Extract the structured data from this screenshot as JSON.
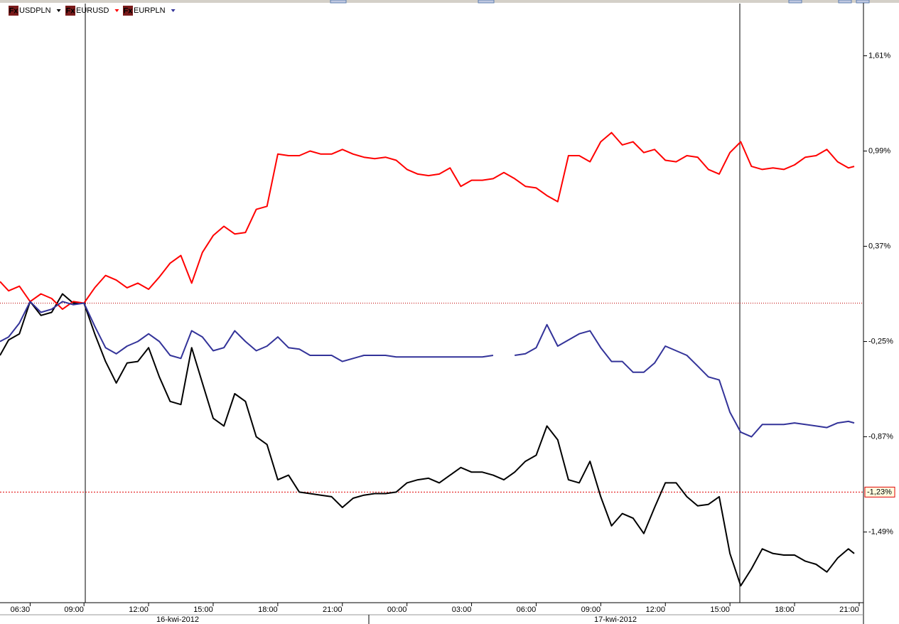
{
  "chart_data": {
    "type": "line",
    "icon_label": "Fx",
    "xlim": [
      5.1,
      45.2
    ],
    "ylim": [
      -1.95,
      1.95
    ],
    "x": [
      5.1,
      5.5,
      6,
      6.5,
      7,
      7.5,
      8,
      8.5,
      9,
      9.5,
      10,
      10.5,
      11,
      11.5,
      12,
      12.5,
      13,
      13.5,
      14,
      14.5,
      15,
      15.5,
      16,
      16.5,
      17,
      17.5,
      18,
      18.5,
      19,
      19.5,
      20,
      20.5,
      21,
      21.5,
      22,
      22.5,
      23,
      23.5,
      24,
      24.5,
      25,
      25.5,
      26,
      26.5,
      27,
      27.5,
      28,
      28.5,
      29,
      29.5,
      30,
      30.5,
      31,
      31.5,
      32,
      32.5,
      33,
      33.5,
      34,
      34.5,
      35,
      35.5,
      36,
      36.5,
      37,
      37.5,
      38,
      38.5,
      39,
      39.5,
      40,
      40.5,
      41,
      41.5,
      42,
      42.5,
      43,
      43.5,
      44,
      44.5,
      44.77
    ],
    "xticks": [
      {
        "value": 6.5,
        "label": "06:30"
      },
      {
        "value": 9,
        "label": "09:00"
      },
      {
        "value": 12,
        "label": "12:00"
      },
      {
        "value": 15,
        "label": "15:00"
      },
      {
        "value": 18,
        "label": "18:00"
      },
      {
        "value": 21,
        "label": "21:00"
      },
      {
        "value": 24,
        "label": "00:00"
      },
      {
        "value": 27,
        "label": "03:00"
      },
      {
        "value": 30,
        "label": "06:00"
      },
      {
        "value": 33,
        "label": "09:00"
      },
      {
        "value": 36,
        "label": "12:00"
      },
      {
        "value": 39,
        "label": "15:00"
      },
      {
        "value": 42,
        "label": "18:00"
      },
      {
        "value": 45,
        "label": "21:00"
      }
    ],
    "date_labels": [
      "16-kwi-2012",
      "17-kwi-2012"
    ],
    "yticks": [
      {
        "value": 1.61,
        "label": "1,61%"
      },
      {
        "value": 0.99,
        "label": "0,99%"
      },
      {
        "value": 0.37,
        "label": "0,37%"
      },
      {
        "value": -0.25,
        "label": "-0,25%"
      },
      {
        "value": -0.87,
        "label": "-0,87%"
      },
      {
        "value": -1.49,
        "label": "-1,49%"
      }
    ],
    "marker": {
      "value": -1.23,
      "label": "-1,23%",
      "color": "#e00000"
    },
    "zero_line_color": "#c00000",
    "series": [
      {
        "name": "USDPLN",
        "color": "#000000",
        "values": [
          -0.34,
          -0.24,
          -0.2,
          0.01,
          -0.08,
          -0.06,
          0.06,
          0,
          0,
          -0.2,
          -0.38,
          -0.52,
          -0.39,
          -0.38,
          -0.29,
          -0.48,
          -0.64,
          -0.66,
          -0.29,
          -0.52,
          -0.75,
          -0.8,
          -0.59,
          -0.64,
          -0.87,
          -0.92,
          -1.15,
          -1.12,
          -1.23,
          -1.24,
          -1.25,
          -1.26,
          -1.33,
          -1.27,
          -1.25,
          -1.24,
          -1.24,
          -1.23,
          -1.17,
          -1.15,
          -1.14,
          -1.17,
          -1.12,
          -1.07,
          -1.1,
          -1.1,
          -1.12,
          -1.15,
          -1.1,
          -1.03,
          -0.99,
          -0.8,
          -0.89,
          -1.15,
          -1.17,
          -1.03,
          -1.26,
          -1.45,
          -1.37,
          -1.4,
          -1.5,
          -1.33,
          -1.17,
          -1.17,
          -1.26,
          -1.32,
          -1.31,
          -1.26,
          -1.63,
          -1.84,
          -1.73,
          -1.6,
          -1.63,
          -1.64,
          -1.64,
          -1.68,
          -1.7,
          -1.75,
          -1.66,
          -1.6,
          -1.63
        ]
      },
      {
        "name": "EURUSD",
        "color": "#ff0000",
        "values": [
          0.14,
          0.08,
          0.11,
          0.01,
          0.06,
          0.03,
          -0.04,
          0.01,
          0,
          0.1,
          0.18,
          0.15,
          0.1,
          0.13,
          0.09,
          0.17,
          0.26,
          0.31,
          0.13,
          0.33,
          0.44,
          0.5,
          0.45,
          0.46,
          0.61,
          0.63,
          0.97,
          0.96,
          0.96,
          0.99,
          0.97,
          0.97,
          1.0,
          0.97,
          0.95,
          0.94,
          0.95,
          0.93,
          0.87,
          0.84,
          0.83,
          0.84,
          0.88,
          0.76,
          0.8,
          0.8,
          0.81,
          0.85,
          0.81,
          0.76,
          0.75,
          0.7,
          0.66,
          0.96,
          0.96,
          0.92,
          1.05,
          1.11,
          1.03,
          1.05,
          0.98,
          1.0,
          0.93,
          0.92,
          0.96,
          0.95,
          0.87,
          0.84,
          0.98,
          1.05,
          0.89,
          0.87,
          0.88,
          0.87,
          0.9,
          0.95,
          0.96,
          1.0,
          0.92,
          0.88,
          0.89
        ]
      },
      {
        "name": "EURPLN",
        "color": "#333399",
        "values": [
          -0.25,
          -0.22,
          -0.13,
          0.01,
          -0.06,
          -0.04,
          0.01,
          -0.01,
          0,
          -0.15,
          -0.29,
          -0.33,
          -0.28,
          -0.25,
          -0.2,
          -0.25,
          -0.34,
          -0.36,
          -0.18,
          -0.22,
          -0.31,
          -0.29,
          -0.18,
          -0.25,
          -0.31,
          -0.28,
          -0.22,
          -0.29,
          -0.3,
          -0.34,
          -0.34,
          -0.34,
          -0.38,
          -0.36,
          -0.34,
          -0.34,
          -0.34,
          -0.35,
          -0.35,
          -0.35,
          -0.35,
          -0.35,
          -0.35,
          -0.35,
          -0.35,
          -0.35,
          -0.34,
          null,
          -0.34,
          -0.33,
          -0.29,
          -0.14,
          -0.28,
          -0.24,
          -0.2,
          -0.18,
          -0.29,
          -0.38,
          -0.38,
          -0.45,
          -0.45,
          -0.39,
          -0.28,
          -0.31,
          -0.34,
          -0.41,
          -0.48,
          -0.5,
          -0.71,
          -0.84,
          -0.87,
          -0.79,
          -0.79,
          -0.79,
          -0.78,
          -0.79,
          -0.8,
          -0.81,
          -0.78,
          -0.77,
          -0.78
        ]
      }
    ]
  }
}
